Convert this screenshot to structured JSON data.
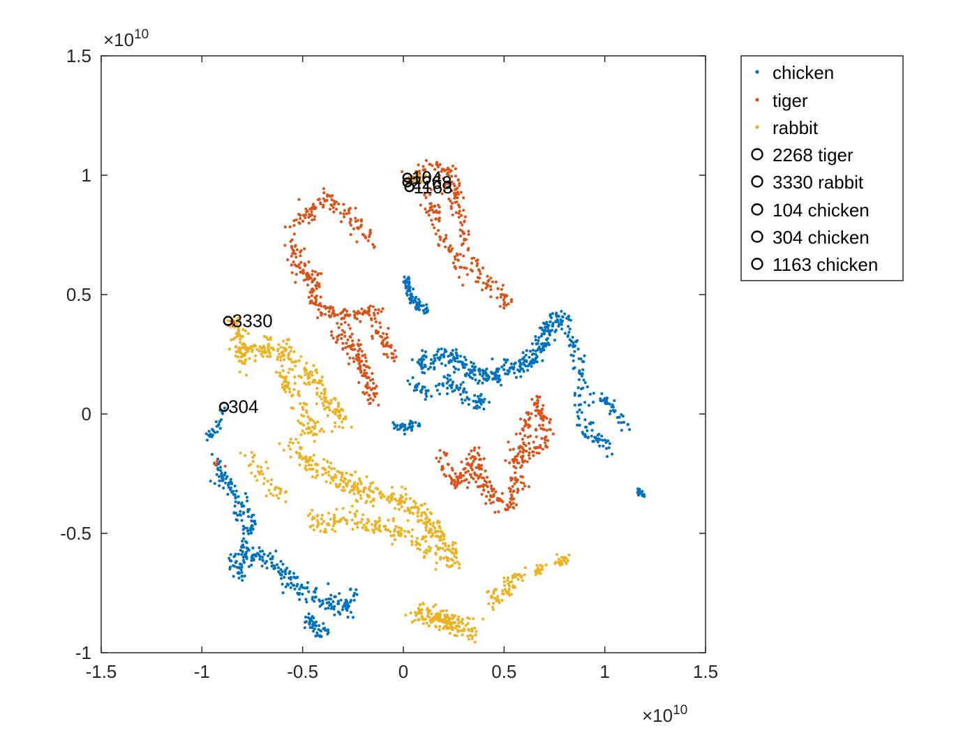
{
  "chart_data": {
    "type": "scatter",
    "title": "",
    "xlabel": "",
    "ylabel": "",
    "xlim": [
      -1.5,
      1.5
    ],
    "ylim": [
      -1,
      1.5
    ],
    "x_multiplier": "×10",
    "x_multiplier_exp": "10",
    "y_multiplier": "×10",
    "y_multiplier_exp": "10",
    "xticks": [
      -1.5,
      -1,
      -0.5,
      0,
      0.5,
      1,
      1.5
    ],
    "xtick_labels": [
      "-1.5",
      "-1",
      "-0.5",
      "0",
      "0.5",
      "1",
      "1.5"
    ],
    "yticks": [
      -1,
      -0.5,
      0,
      0.5,
      1,
      1.5
    ],
    "ytick_labels": [
      "-1",
      "-0.5",
      "0",
      "0.5",
      "1",
      "1.5"
    ],
    "grid": false,
    "legend_position": "outside-right-top",
    "series": [
      {
        "name": "chicken",
        "color": "#0072BD",
        "clusters": [
          {
            "path": [
              [
                0.0,
                0.58
              ],
              [
                0.02,
                0.55
              ],
              [
                0.04,
                0.49
              ],
              [
                0.08,
                0.45
              ],
              [
                0.12,
                0.43
              ]
            ],
            "n": 70,
            "spread": 0.012
          },
          {
            "path": [
              [
                0.07,
                0.2
              ],
              [
                0.14,
                0.24
              ],
              [
                0.22,
                0.25
              ],
              [
                0.3,
                0.2
              ],
              [
                0.4,
                0.16
              ],
              [
                0.48,
                0.15
              ],
              [
                0.56,
                0.2
              ],
              [
                0.66,
                0.24
              ],
              [
                0.72,
                0.36
              ],
              [
                0.79,
                0.41
              ]
            ],
            "n": 330,
            "spread": 0.02
          },
          {
            "path": [
              [
                0.05,
                0.12
              ],
              [
                0.12,
                0.08
              ],
              [
                0.22,
                0.14
              ],
              [
                0.32,
                0.06
              ],
              [
                0.4,
                0.05
              ]
            ],
            "n": 90,
            "spread": 0.017
          },
          {
            "path": [
              [
                -0.05,
                -0.05
              ],
              [
                0.02,
                -0.05
              ],
              [
                0.08,
                -0.04
              ]
            ],
            "n": 40,
            "spread": 0.012
          },
          {
            "path": [
              [
                0.79,
                0.41
              ],
              [
                0.85,
                0.28
              ],
              [
                0.88,
                0.15
              ],
              [
                0.89,
                0.0
              ],
              [
                0.93,
                -0.1
              ],
              [
                1.02,
                -0.14
              ]
            ],
            "n": 110,
            "spread": 0.018
          },
          {
            "path": [
              [
                0.95,
                0.08
              ],
              [
                1.02,
                0.05
              ],
              [
                1.1,
                -0.05
              ]
            ],
            "n": 40,
            "spread": 0.014
          },
          {
            "path": [
              [
                1.16,
                -0.32
              ],
              [
                1.19,
                -0.34
              ]
            ],
            "n": 25,
            "spread": 0.008
          },
          {
            "path": [
              [
                -0.89,
                0.03
              ],
              [
                -0.92,
                -0.05
              ],
              [
                -0.97,
                -0.1
              ]
            ],
            "n": 25,
            "spread": 0.01
          },
          {
            "path": [
              [
                -0.93,
                -0.2
              ],
              [
                -0.86,
                -0.31
              ],
              [
                -0.8,
                -0.4
              ],
              [
                -0.77,
                -0.44
              ],
              [
                -0.78,
                -0.52
              ],
              [
                -0.8,
                -0.58
              ],
              [
                -0.84,
                -0.61
              ],
              [
                -0.82,
                -0.68
              ],
              [
                -0.74,
                -0.58
              ],
              [
                -0.68,
                -0.6
              ],
              [
                -0.6,
                -0.67
              ],
              [
                -0.52,
                -0.73
              ],
              [
                -0.44,
                -0.76
              ],
              [
                -0.36,
                -0.79
              ],
              [
                -0.29,
                -0.82
              ],
              [
                -0.24,
                -0.75
              ]
            ],
            "n": 340,
            "spread": 0.02
          },
          {
            "path": [
              [
                -0.48,
                -0.86
              ],
              [
                -0.43,
                -0.9
              ],
              [
                -0.38,
                -0.92
              ]
            ],
            "n": 45,
            "spread": 0.014
          }
        ]
      },
      {
        "name": "tiger",
        "color": "#D95319",
        "clusters": [
          {
            "path": [
              [
                0.04,
                0.98
              ],
              [
                0.1,
                1.02
              ],
              [
                0.16,
                1.05
              ],
              [
                0.22,
                1.0
              ],
              [
                0.27,
                0.9
              ],
              [
                0.3,
                0.75
              ],
              [
                0.33,
                0.65
              ],
              [
                0.4,
                0.55
              ],
              [
                0.46,
                0.52
              ],
              [
                0.53,
                0.45
              ]
            ],
            "n": 180,
            "spread": 0.02
          },
          {
            "path": [
              [
                0.1,
                0.93
              ],
              [
                0.15,
                0.86
              ],
              [
                0.19,
                0.75
              ],
              [
                0.25,
                0.65
              ],
              [
                0.3,
                0.58
              ]
            ],
            "n": 70,
            "spread": 0.018
          },
          {
            "path": [
              [
                -0.55,
                0.78
              ],
              [
                -0.46,
                0.85
              ],
              [
                -0.37,
                0.91
              ],
              [
                -0.3,
                0.86
              ],
              [
                -0.22,
                0.78
              ],
              [
                -0.13,
                0.72
              ]
            ],
            "n": 110,
            "spread": 0.02
          },
          {
            "path": [
              [
                -0.55,
                0.72
              ],
              [
                -0.52,
                0.6
              ],
              [
                -0.44,
                0.57
              ],
              [
                -0.44,
                0.45
              ],
              [
                -0.37,
                0.42
              ],
              [
                -0.28,
                0.41
              ],
              [
                -0.14,
                0.43
              ],
              [
                -0.14,
                0.35
              ],
              [
                -0.08,
                0.3
              ],
              [
                -0.06,
                0.25
              ]
            ],
            "n": 220,
            "spread": 0.02
          },
          {
            "path": [
              [
                -0.33,
                0.32
              ],
              [
                -0.26,
                0.3
              ],
              [
                -0.22,
                0.23
              ],
              [
                -0.18,
                0.15
              ],
              [
                -0.16,
                0.07
              ]
            ],
            "n": 120,
            "spread": 0.022
          },
          {
            "path": [
              [
                0.2,
                -0.18
              ],
              [
                0.23,
                -0.27
              ],
              [
                0.28,
                -0.3
              ],
              [
                0.36,
                -0.16
              ],
              [
                0.38,
                -0.28
              ],
              [
                0.42,
                -0.32
              ],
              [
                0.48,
                -0.38
              ],
              [
                0.52,
                -0.4
              ],
              [
                0.56,
                -0.3
              ],
              [
                0.57,
                -0.18
              ],
              [
                0.6,
                -0.08
              ],
              [
                0.63,
                -0.02
              ],
              [
                0.66,
                0.04
              ]
            ],
            "n": 260,
            "spread": 0.02
          },
          {
            "path": [
              [
                0.66,
                0.07
              ],
              [
                0.69,
                -0.03
              ],
              [
                0.72,
                -0.1
              ],
              [
                0.64,
                -0.15
              ],
              [
                0.58,
                -0.22
              ]
            ],
            "n": 80,
            "spread": 0.018
          },
          {
            "path": [
              [
                -0.86,
                0.39
              ],
              [
                -0.84,
                0.38
              ]
            ],
            "n": 6,
            "spread": 0.01
          },
          {
            "path": [
              [
                -0.93,
                -0.2
              ],
              [
                -0.9,
                -0.22
              ]
            ],
            "n": 4,
            "spread": 0.01
          }
        ]
      },
      {
        "name": "rabbit",
        "color": "#EDB120",
        "clusters": [
          {
            "path": [
              [
                0.01,
                0.97
              ],
              [
                0.05,
                0.98
              ],
              [
                0.1,
                0.99
              ]
            ],
            "n": 20,
            "spread": 0.012
          },
          {
            "path": [
              [
                -0.84,
                0.4
              ],
              [
                -0.81,
                0.32
              ],
              [
                -0.79,
                0.22
              ],
              [
                -0.74,
                0.27
              ],
              [
                -0.67,
                0.29
              ],
              [
                -0.58,
                0.25
              ],
              [
                -0.5,
                0.2
              ],
              [
                -0.43,
                0.14
              ],
              [
                -0.39,
                0.05
              ],
              [
                -0.33,
                0.02
              ],
              [
                -0.3,
                -0.05
              ]
            ],
            "n": 260,
            "spread": 0.022
          },
          {
            "path": [
              [
                -0.62,
                0.18
              ],
              [
                -0.56,
                0.1
              ],
              [
                -0.5,
                0.03
              ],
              [
                -0.48,
                -0.06
              ],
              [
                -0.42,
                -0.08
              ]
            ],
            "n": 80,
            "spread": 0.022
          },
          {
            "path": [
              [
                -0.56,
                -0.13
              ],
              [
                -0.48,
                -0.2
              ],
              [
                -0.38,
                -0.24
              ],
              [
                -0.28,
                -0.3
              ],
              [
                -0.18,
                -0.33
              ],
              [
                -0.08,
                -0.35
              ],
              [
                0.02,
                -0.38
              ],
              [
                0.1,
                -0.42
              ],
              [
                0.15,
                -0.5
              ],
              [
                0.22,
                -0.56
              ],
              [
                0.26,
                -0.63
              ]
            ],
            "n": 330,
            "spread": 0.022
          },
          {
            "path": [
              [
                -0.48,
                -0.45
              ],
              [
                -0.38,
                -0.46
              ],
              [
                -0.28,
                -0.43
              ],
              [
                -0.18,
                -0.46
              ],
              [
                -0.08,
                -0.49
              ],
              [
                0.02,
                -0.5
              ],
              [
                0.1,
                -0.55
              ],
              [
                0.18,
                -0.6
              ]
            ],
            "n": 160,
            "spread": 0.02
          },
          {
            "path": [
              [
                -0.76,
                -0.18
              ],
              [
                -0.72,
                -0.22
              ],
              [
                -0.66,
                -0.3
              ],
              [
                -0.58,
                -0.36
              ]
            ],
            "n": 40,
            "spread": 0.022
          },
          {
            "path": [
              [
                0.05,
                -0.83
              ],
              [
                0.14,
                -0.85
              ],
              [
                0.22,
                -0.87
              ],
              [
                0.3,
                -0.89
              ],
              [
                0.36,
                -0.91
              ]
            ],
            "n": 160,
            "spread": 0.022
          },
          {
            "path": [
              [
                0.43,
                -0.79
              ],
              [
                0.5,
                -0.74
              ],
              [
                0.56,
                -0.69
              ],
              [
                0.6,
                -0.66
              ]
            ],
            "n": 60,
            "spread": 0.018
          },
          {
            "path": [
              [
                0.66,
                -0.67
              ],
              [
                0.69,
                -0.64
              ]
            ],
            "n": 20,
            "spread": 0.01
          },
          {
            "path": [
              [
                0.77,
                -0.62
              ],
              [
                0.8,
                -0.61
              ]
            ],
            "n": 25,
            "spread": 0.01
          }
        ]
      }
    ],
    "highlighted_points": [
      {
        "legend": "2268 tiger",
        "label": "2268",
        "x": 0.02,
        "y": 0.97
      },
      {
        "legend": "3330 rabbit",
        "label": "3330",
        "x": -0.87,
        "y": 0.39
      },
      {
        "legend": "104 chicken",
        "label": "104",
        "x": 0.02,
        "y": 0.99
      },
      {
        "legend": "304 chicken",
        "label": "304",
        "x": -0.89,
        "y": 0.03
      },
      {
        "legend": "1163 chicken",
        "label": "1163",
        "x": 0.03,
        "y": 0.95
      }
    ]
  }
}
